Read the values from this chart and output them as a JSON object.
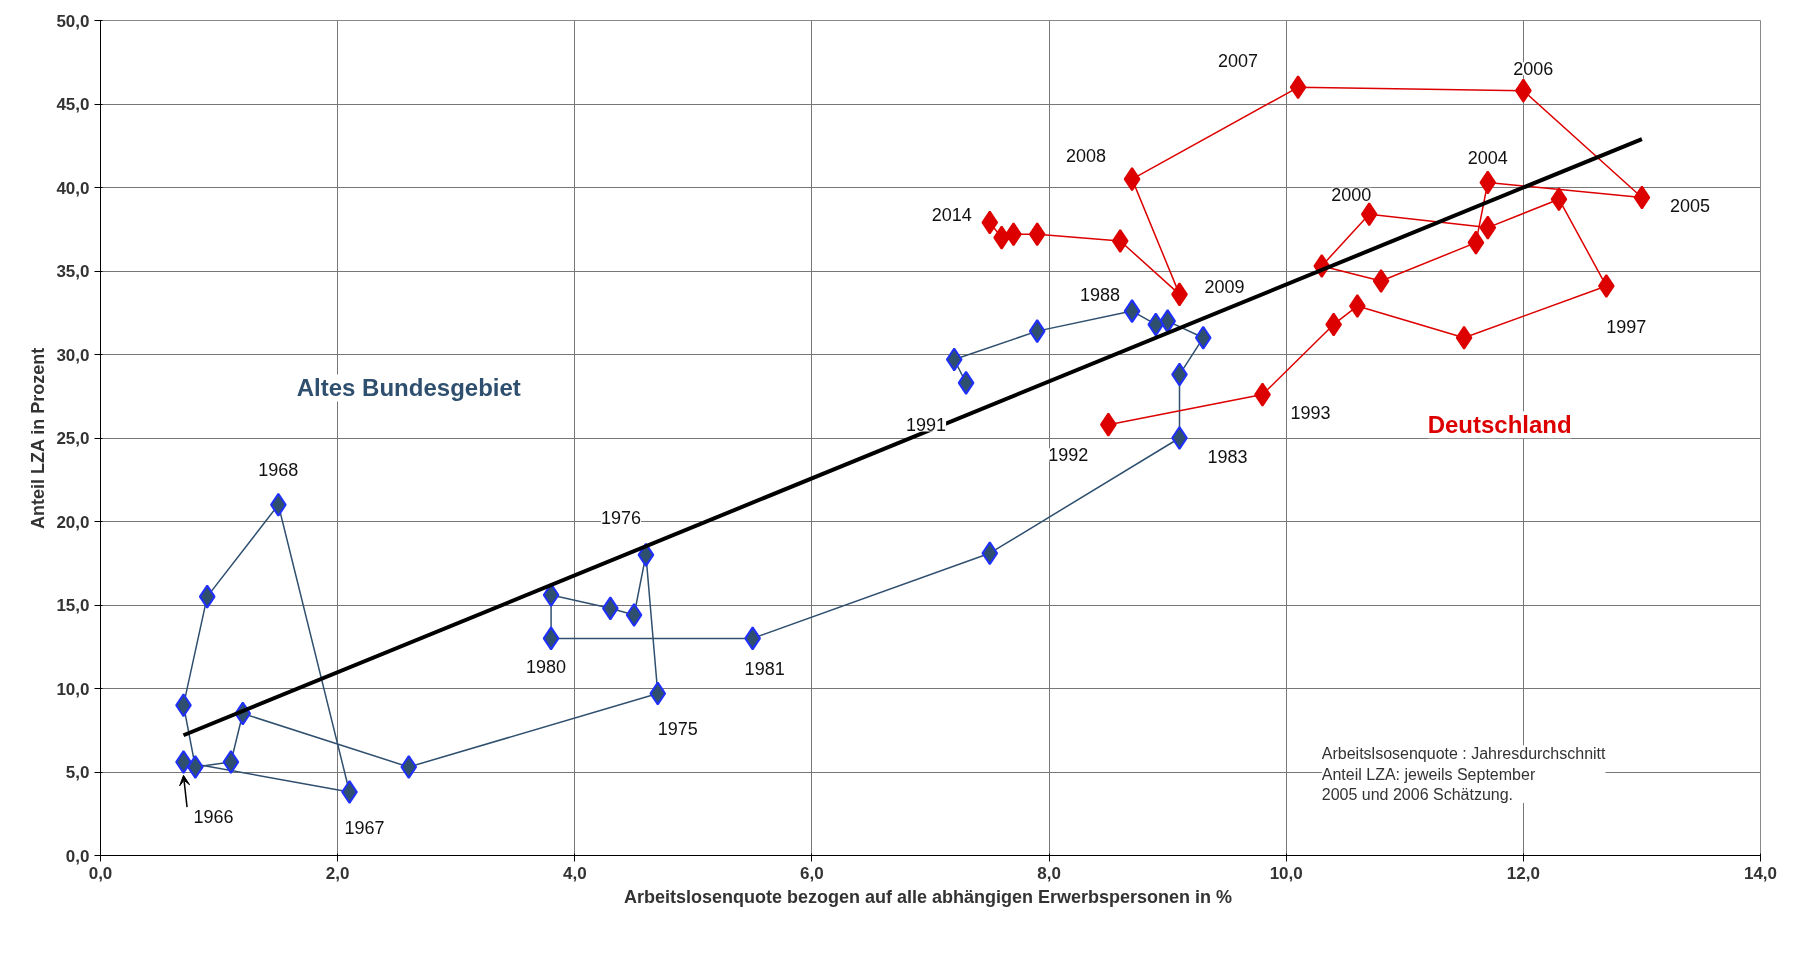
{
  "chart_data": {
    "type": "line",
    "xlabel": "Arbeitslosenquote  bezogen auf alle abhängigen Erwerbspersonen in %",
    "ylabel": "Anteil LZA in Prozent",
    "series": [
      {
        "name": "Altes Bundesgebiet",
        "color": "#2f4f6f",
        "marker": "diamond",
        "x": [
          0.7,
          2.1,
          1.5,
          0.9,
          0.7,
          0.8,
          1.1,
          1.2,
          2.6,
          4.7,
          4.6,
          4.5,
          4.3,
          3.8,
          3.8,
          5.5,
          7.5,
          9.1,
          9.1,
          9.3,
          9.0,
          8.9,
          8.7,
          7.9,
          7.2,
          7.3
        ],
        "values": [
          5.6,
          3.8,
          21.0,
          15.5,
          9.0,
          5.3,
          5.6,
          8.5,
          5.3,
          9.7,
          18.0,
          14.4,
          14.8,
          15.6,
          13.0,
          13.0,
          18.1,
          25.0,
          28.8,
          31.0,
          32.0,
          31.8,
          32.6,
          31.4,
          29.7,
          28.3
        ]
      },
      {
        "name": "Deutschland",
        "color": "#dd0000",
        "marker": "diamond",
        "x": [
          8.5,
          9.8,
          10.4,
          10.6,
          11.5,
          12.7,
          12.3,
          11.7,
          10.7,
          10.3,
          10.8,
          11.6,
          11.7,
          13.0,
          12.0,
          10.1,
          8.7,
          9.1,
          8.6,
          7.9,
          7.7,
          7.6,
          7.5
        ],
        "values": [
          25.8,
          27.6,
          31.8,
          32.9,
          31.0,
          34.1,
          39.3,
          37.6,
          38.4,
          35.3,
          34.4,
          36.7,
          40.3,
          39.4,
          45.8,
          46.0,
          40.5,
          33.6,
          36.8,
          37.2,
          37.2,
          37.0,
          37.9
        ]
      },
      {
        "type": "line",
        "color": "#000000",
        "marker": "none",
        "x": [
          0.7,
          13.0
        ],
        "values": [
          7.2,
          42.9
        ]
      }
    ],
    "xlim": [
      0,
      14
    ],
    "ylim": [
      0,
      50
    ],
    "xticks": [
      {
        "value": 0,
        "label": "0,0"
      },
      {
        "value": 2,
        "label": "2,0"
      },
      {
        "value": 4,
        "label": "4,0"
      },
      {
        "value": 6,
        "label": "6,0"
      },
      {
        "value": 8,
        "label": "8,0"
      },
      {
        "value": 10,
        "label": "10,0"
      },
      {
        "value": 12,
        "label": "12,0"
      },
      {
        "value": 14,
        "label": "14,0"
      }
    ],
    "yticks": [
      {
        "value": 0,
        "label": "0,0"
      },
      {
        "value": 5,
        "label": "5,0"
      },
      {
        "value": 10,
        "label": "10,0"
      },
      {
        "value": 15,
        "label": "15,0"
      },
      {
        "value": 20,
        "label": "20,0"
      },
      {
        "value": 25,
        "label": "25,0"
      },
      {
        "value": 30,
        "label": "30,0"
      },
      {
        "value": 35,
        "label": "35,0"
      },
      {
        "value": 40,
        "label": "40,0"
      },
      {
        "value": 45,
        "label": "45,0"
      },
      {
        "value": 50,
        "label": "50,0"
      }
    ],
    "grid": true,
    "annotations": [
      {
        "text": "1966",
        "x": 0.7,
        "y": 5.6
      },
      {
        "text": "1967",
        "x": 2.1,
        "y": 3.8
      },
      {
        "text": "1968",
        "x": 1.5,
        "y": 21.0
      },
      {
        "text": "1976",
        "x": 4.6,
        "y": 18.0
      },
      {
        "text": "1980",
        "x": 3.8,
        "y": 13.0
      },
      {
        "text": "1981",
        "x": 5.5,
        "y": 13.0
      },
      {
        "text": "1975",
        "x": 4.7,
        "y": 9.7
      },
      {
        "text": "1983",
        "x": 9.1,
        "y": 25.0
      },
      {
        "text": "1988",
        "x": 8.7,
        "y": 32.6
      },
      {
        "text": "1991",
        "x": 7.3,
        "y": 28.3
      },
      {
        "text": "1992",
        "x": 8.5,
        "y": 25.8
      },
      {
        "text": "1993",
        "x": 9.8,
        "y": 27.6
      },
      {
        "text": "1997",
        "x": 12.7,
        "y": 34.1
      },
      {
        "text": "2009",
        "x": 9.1,
        "y": 33.6
      },
      {
        "text": "2014",
        "x": 7.5,
        "y": 37.9
      },
      {
        "text": "2008",
        "x": 8.7,
        "y": 40.5
      },
      {
        "text": "2007",
        "x": 10.1,
        "y": 46.0
      },
      {
        "text": "2006",
        "x": 12.0,
        "y": 45.8
      },
      {
        "text": "2004",
        "x": 11.7,
        "y": 40.3
      },
      {
        "text": "2000",
        "x": 10.7,
        "y": 38.4
      },
      {
        "text": "2005",
        "x": 13.0,
        "y": 39.4
      },
      "Arbeitslsosenquote : Jahresdurchschnitt\nAnteil LZA: jeweils September\n2005 und 2006 Schätzung."
    ]
  }
}
